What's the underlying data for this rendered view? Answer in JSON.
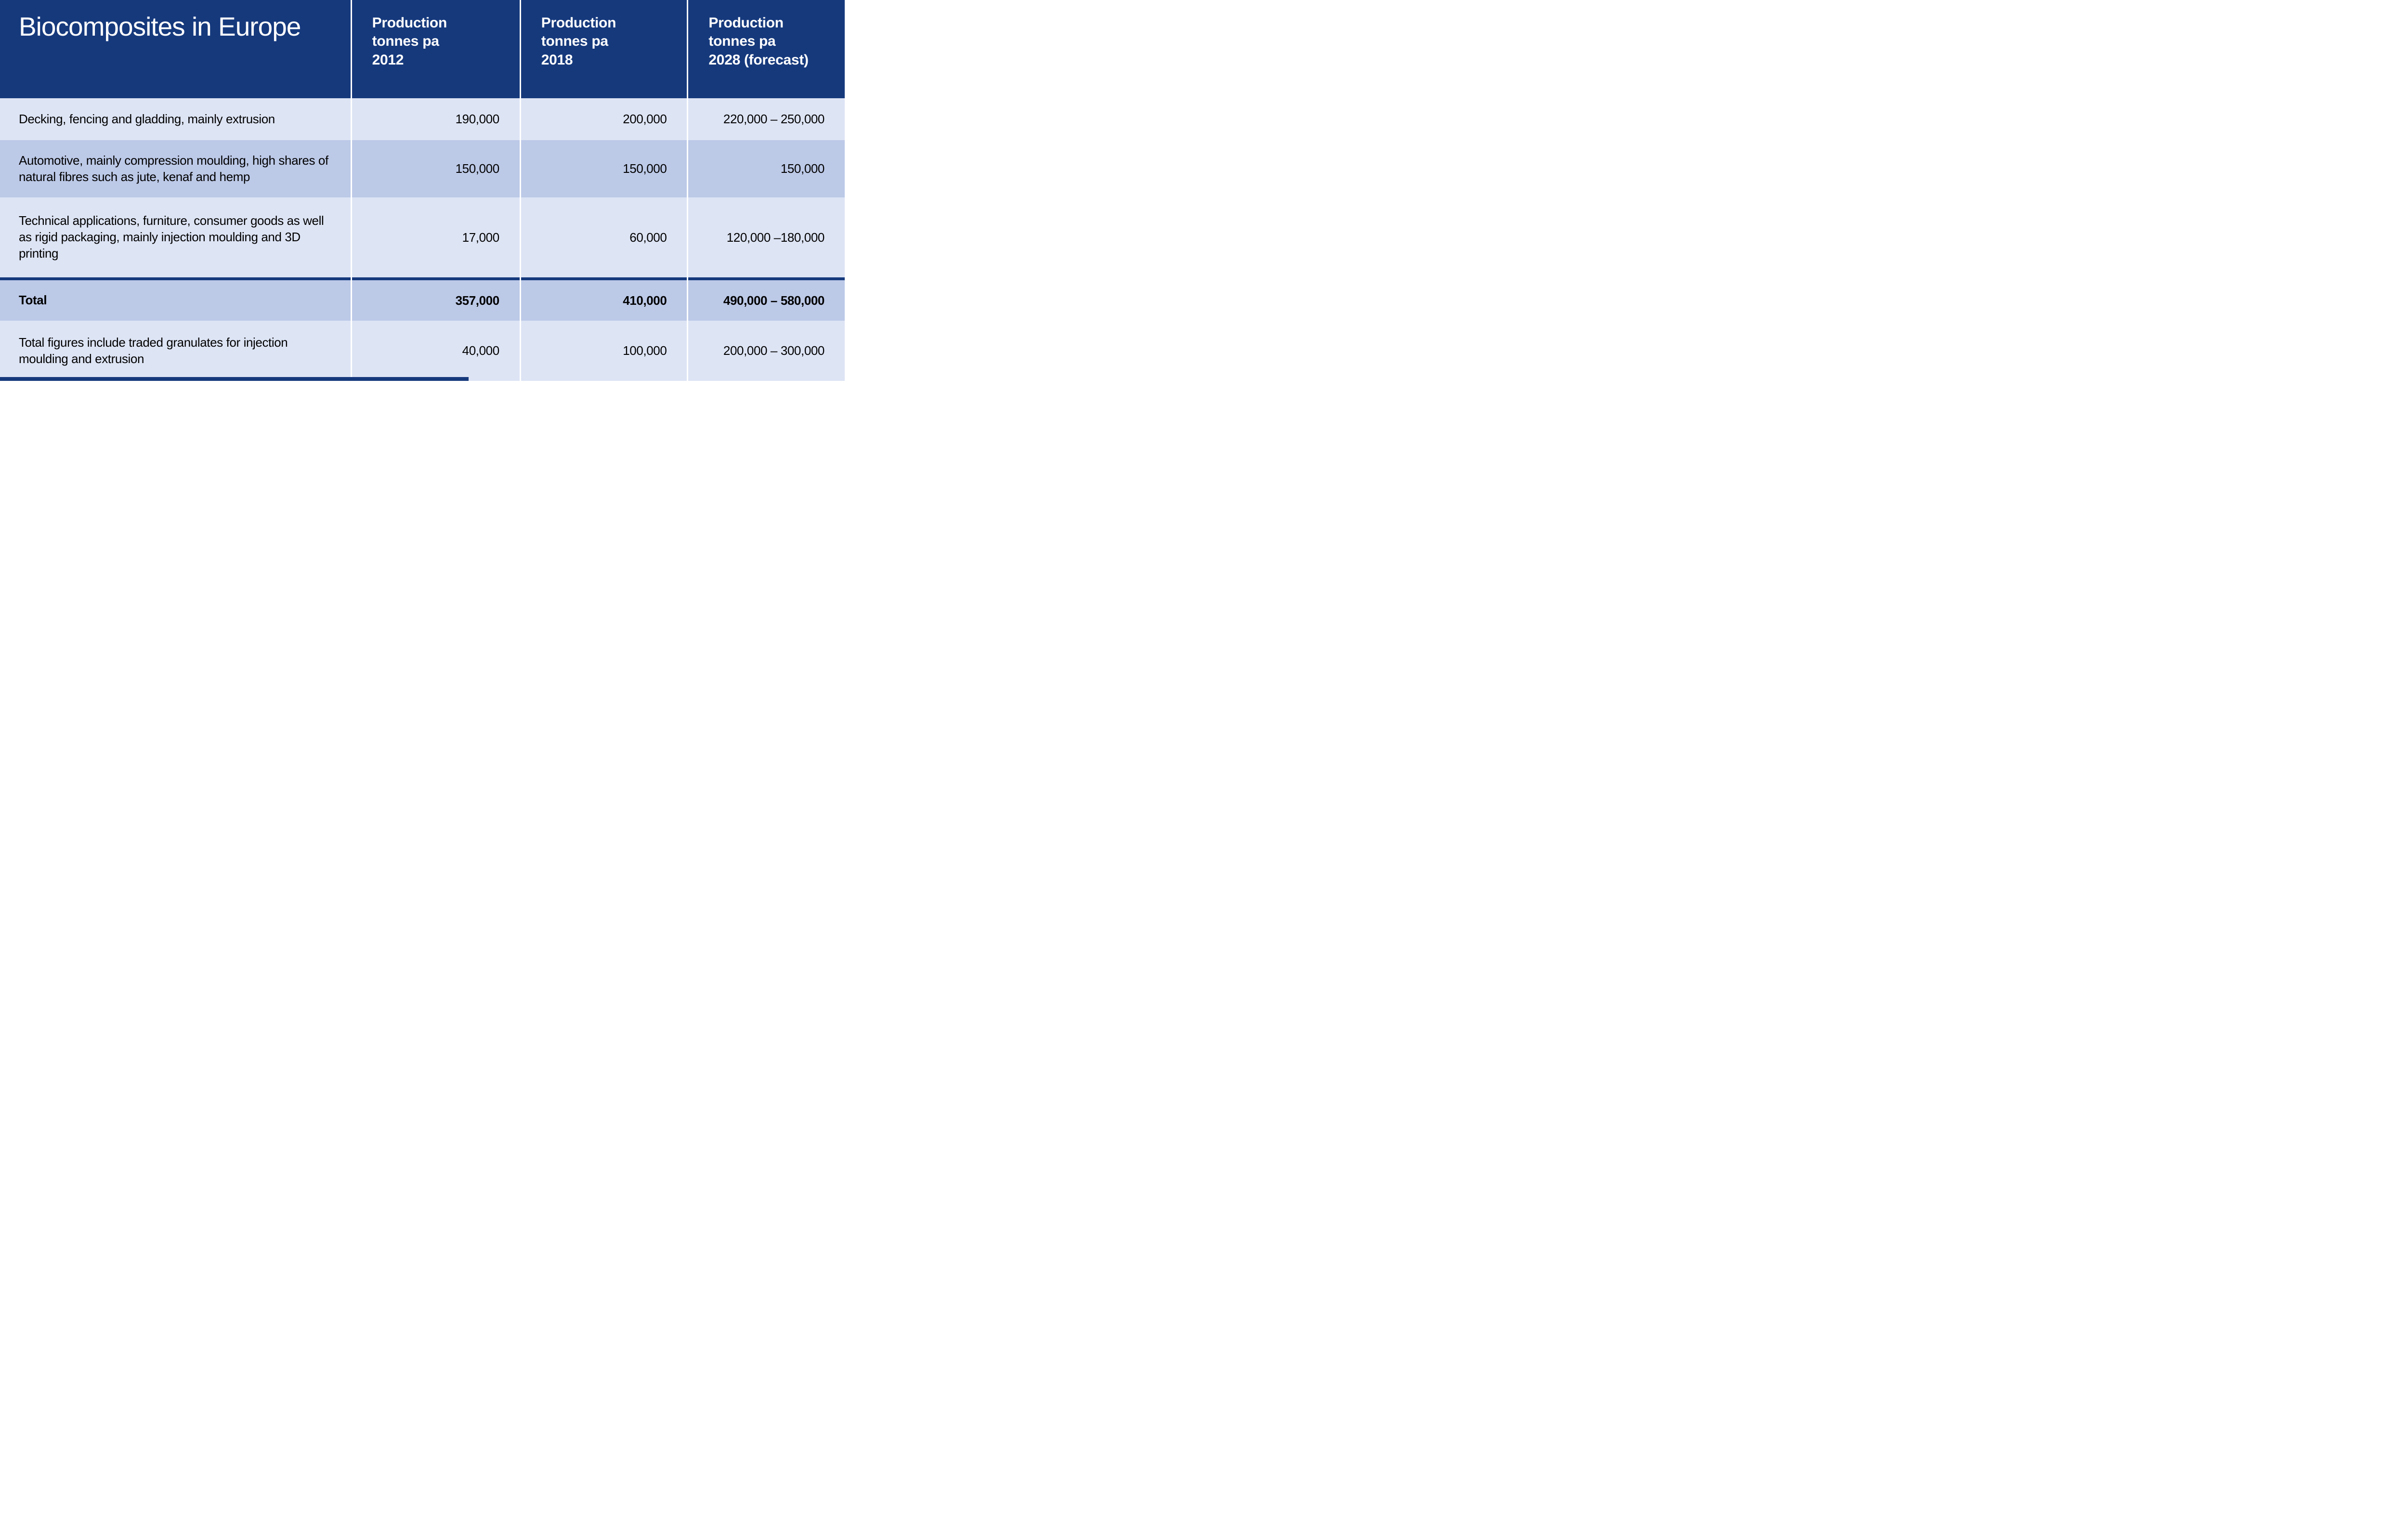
{
  "colors": {
    "header_navy": "#16397c",
    "row_light": "#dde4f4",
    "row_medium": "#bcc9e7",
    "divider_white": "#ffffff",
    "text_dark": "#000000",
    "text_light": "#ffffff"
  },
  "table": {
    "title": "Biocomposites in Europe",
    "columns": [
      {
        "label": "Production\ntonnes pa\n2012"
      },
      {
        "label": "Production\ntonnes pa\n2018"
      },
      {
        "label": "Production\ntonnes pa\n2028 (forecast)"
      }
    ],
    "rows": [
      {
        "label": "Decking, fencing and gladding, mainly extrusion",
        "v2012": "190,000",
        "v2018": "200,000",
        "v2028": "220,000 – 250,000"
      },
      {
        "label": "Automotive, mainly compression moulding, high shares of natural fibres such as jute, kenaf and hemp",
        "v2012": "150,000",
        "v2018": "150,000",
        "v2028": "150,000"
      },
      {
        "label": "Technical applications, furniture, consumer goods as well as rigid packaging, mainly injection moulding and 3D printing",
        "v2012": "17,000",
        "v2018": "60,000",
        "v2028": "120,000 –180,000"
      },
      {
        "label": "Total",
        "v2012": "357,000",
        "v2018": "410,000",
        "v2028": "490,000 – 580,000"
      },
      {
        "label": "Total figures include traded granulates for injection moulding and extrusion",
        "v2012": "40,000",
        "v2018": "100,000",
        "v2028": "200,000 – 300,000"
      }
    ]
  },
  "chart_data": {
    "type": "table",
    "title": "Biocomposites in Europe",
    "columns": [
      "Production tonnes pa 2012",
      "Production tonnes pa 2018",
      "Production tonnes pa 2028 (forecast)"
    ],
    "rows": [
      {
        "category": "Decking, fencing and gladding, mainly extrusion",
        "values": [
          "190,000",
          "200,000",
          "220,000 – 250,000"
        ]
      },
      {
        "category": "Automotive, mainly compression moulding, high shares of natural fibres such as jute, kenaf and hemp",
        "values": [
          "150,000",
          "150,000",
          "150,000"
        ]
      },
      {
        "category": "Technical applications, furniture, consumer goods as well as rigid packaging, mainly injection moulding and 3D printing",
        "values": [
          "17,000",
          "60,000",
          "120,000 –180,000"
        ]
      },
      {
        "category": "Total",
        "values": [
          "357,000",
          "410,000",
          "490,000 – 580,000"
        ],
        "bold": true
      },
      {
        "category": "Total figures include traded granulates for injection moulding and extrusion",
        "values": [
          "40,000",
          "100,000",
          "200,000 – 300,000"
        ]
      }
    ],
    "notes": "Alternating light/medium blue rows; navy rule above bold Total row; white column dividers"
  }
}
